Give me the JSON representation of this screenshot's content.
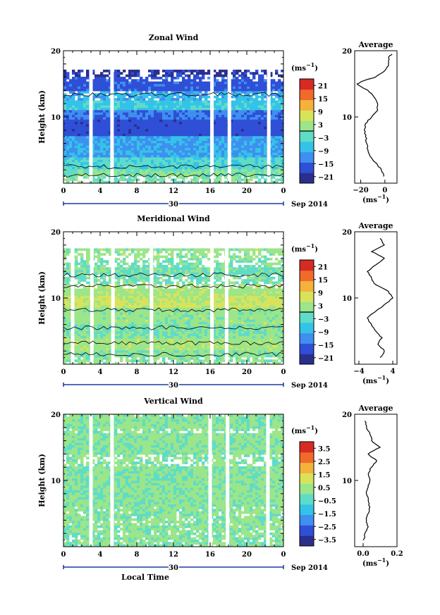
{
  "colors": {
    "scale": [
      "#2b2f8c",
      "#2f4fd6",
      "#3f8ff0",
      "#34c3e8",
      "#5fdcc8",
      "#9be58a",
      "#d9e35a",
      "#f5b23a",
      "#f06a2a",
      "#d62a25"
    ],
    "contour": "#000000",
    "gap": "#ffffff"
  },
  "chart_data": [
    {
      "type": "heatmap",
      "title": "Zonal Wind",
      "ylabel": "Height (km)",
      "ylim": [
        0,
        20
      ],
      "yticks": [
        "20",
        "10"
      ],
      "xlim": [
        0,
        24
      ],
      "xticks": [
        "0",
        "4",
        "8",
        "12",
        "16",
        "20",
        "0"
      ],
      "date_day": "30",
      "date_label": "Sep 2014",
      "colorbar": {
        "unit": "(ms",
        "unit_exp": "−1",
        "unit_close": ")",
        "range": [
          -24,
          24
        ],
        "ticks": [
          "21",
          "15",
          "9",
          "3",
          "−3",
          "−9",
          "−15",
          "−21"
        ],
        "tick_values": [
          21,
          15,
          9,
          3,
          -3,
          -9,
          -15,
          -21
        ],
        "zero_line": 0
      },
      "gaps_hour": [
        3.0,
        5.3,
        16.2,
        18.1,
        22.4
      ],
      "profile_label": "Average",
      "profile_xlim": [
        -25,
        10
      ],
      "profile_xticks": [
        "−20",
        "0"
      ],
      "profile_xtick_values": [
        -20,
        0
      ],
      "profile_xlabel": "(ms",
      "profile_xlabel_exp": "−1",
      "profile_xlabel_close": ")",
      "profile_yticks": [
        "20",
        "10"
      ],
      "profile": {
        "height_km": [
          1,
          2,
          3,
          4,
          5,
          6,
          7,
          8,
          9,
          10,
          11,
          12,
          13,
          14,
          14.5,
          15,
          15.5,
          16,
          17,
          18,
          19,
          19.5
        ],
        "value": [
          -1,
          -3,
          -7,
          -12,
          -14,
          -15,
          -16,
          -17,
          -16,
          -11,
          -6,
          -6,
          -9,
          -14,
          -19,
          -23,
          -17,
          -8,
          0,
          3,
          3,
          6
        ]
      }
    },
    {
      "type": "heatmap",
      "title": "Meridional Wind",
      "ylabel": "Height (km)",
      "ylim": [
        0,
        20
      ],
      "yticks": [
        "20",
        "10"
      ],
      "xlim": [
        0,
        24
      ],
      "xticks": [
        "0",
        "4",
        "8",
        "12",
        "16",
        "20",
        "0"
      ],
      "date_day": "30",
      "date_label": "Sep 2014",
      "colorbar": {
        "unit": "(ms",
        "unit_exp": "−1",
        "unit_close": ")",
        "range": [
          -24,
          24
        ],
        "ticks": [
          "21",
          "15",
          "9",
          "3",
          "−3",
          "−9",
          "−15",
          "−21"
        ],
        "tick_values": [
          21,
          15,
          9,
          3,
          -3,
          -9,
          -15,
          -21
        ],
        "zero_line": 0
      },
      "gaps_hour": [
        1.0,
        3.1,
        5.4,
        9.6,
        16.2,
        17.8
      ],
      "profile_label": "Average",
      "profile_xlim": [
        -5,
        5
      ],
      "profile_xticks": [
        "−4",
        "4"
      ],
      "profile_xtick_values": [
        -4,
        4
      ],
      "profile_xlabel": "(ms",
      "profile_xlabel_exp": "−1",
      "profile_xlabel_close": ")",
      "profile_yticks": [
        "20",
        "10"
      ],
      "profile": {
        "height_km": [
          1,
          2,
          3,
          4,
          5,
          6,
          7,
          8,
          9,
          10,
          11,
          12,
          13,
          14,
          15,
          16,
          17,
          18,
          19
        ],
        "value": [
          1,
          2,
          0.5,
          1.5,
          0,
          -1,
          -2,
          0,
          2,
          4,
          3,
          0,
          -1,
          -2,
          0,
          2,
          -1,
          2,
          1
        ]
      }
    },
    {
      "type": "heatmap",
      "title": "Vertical Wind",
      "ylabel": "Height (km)",
      "ylim": [
        0,
        20
      ],
      "yticks": [
        "20",
        "10"
      ],
      "xlim": [
        0,
        24
      ],
      "xticks": [
        "0",
        "4",
        "8",
        "12",
        "16",
        "20",
        "0"
      ],
      "date_day": "30",
      "date_label": "Sep 2014",
      "xlabel": "Local Time",
      "colorbar": {
        "unit": "(ms",
        "unit_exp": "−1",
        "unit_close": ")",
        "range": [
          -4,
          4
        ],
        "ticks": [
          "3.5",
          "2.5",
          "1.5",
          "0.5",
          "−0.5",
          "−1.5",
          "−2.5",
          "−3.5"
        ],
        "tick_values": [
          3.5,
          2.5,
          1.5,
          0.5,
          -0.5,
          -1.5,
          -2.5,
          -3.5
        ],
        "zero_line": null
      },
      "gaps_hour": [
        3.0,
        5.3,
        16.0,
        17.9,
        22.3
      ],
      "profile_label": "Average",
      "profile_xlim": [
        -0.05,
        0.2
      ],
      "profile_xticks": [
        "0.0",
        "0.2"
      ],
      "profile_xtick_values": [
        0.0,
        0.2
      ],
      "profile_xlabel": "(ms",
      "profile_xlabel_exp": "−1",
      "profile_xlabel_close": ")",
      "profile_yticks": [
        "20",
        "10"
      ],
      "profile": {
        "height_km": [
          1,
          2,
          3,
          4,
          5,
          6,
          7,
          8,
          9,
          10,
          11,
          12,
          13,
          14,
          15,
          16,
          17,
          18,
          19
        ],
        "value": [
          0.0,
          0.01,
          0.03,
          0.02,
          0.03,
          0.04,
          0.03,
          0.02,
          0.03,
          0.04,
          0.03,
          0.05,
          0.08,
          0.03,
          0.1,
          0.05,
          0.04,
          0.02,
          0.01
        ]
      }
    }
  ]
}
